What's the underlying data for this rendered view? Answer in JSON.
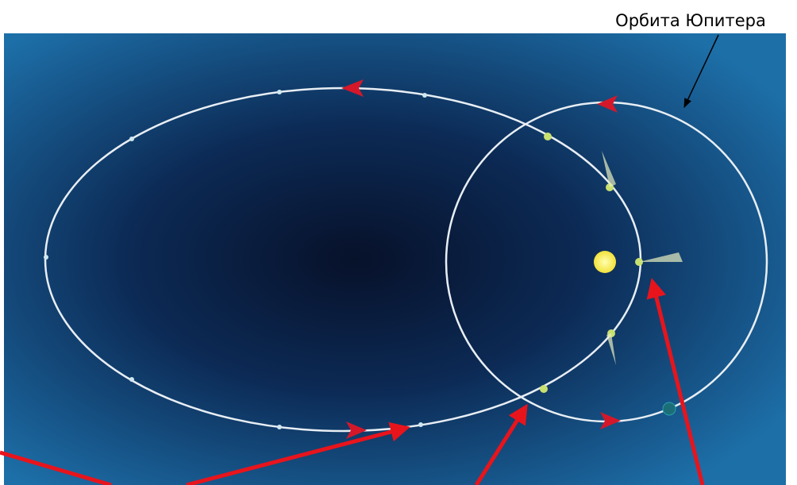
{
  "labels": {
    "jupiter_orbit": "Орбита Юпитера"
  }
}
